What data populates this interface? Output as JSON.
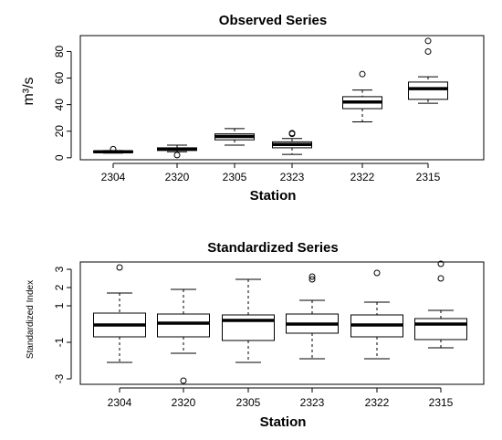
{
  "chart_data": [
    {
      "type": "box",
      "title": "Observed Series",
      "xlabel": "Station",
      "ylabel": "m³/s",
      "ylim": [
        -1.5,
        92
      ],
      "yticks": [
        0,
        20,
        40,
        60,
        80
      ],
      "ytick_labels": [
        "0",
        "20",
        "40",
        "60",
        "80"
      ],
      "categories": [
        "2304",
        "2320",
        "2305",
        "2323",
        "2322",
        "2315"
      ],
      "boxes": [
        {
          "whisker_low": 3.5,
          "q1": 4.0,
          "median": 4.5,
          "q3": 5.0,
          "whisker_high": 5.5,
          "outliers": [
            6.5
          ]
        },
        {
          "whisker_low": 4.5,
          "q1": 5.5,
          "median": 6.5,
          "q3": 7.5,
          "whisker_high": 9.5,
          "outliers": [
            2.0
          ]
        },
        {
          "whisker_low": 9.5,
          "q1": 13.5,
          "median": 16.0,
          "q3": 18.0,
          "whisker_high": 22.0,
          "outliers": []
        },
        {
          "whisker_low": 2.5,
          "q1": 7.5,
          "median": 10.0,
          "q3": 12.0,
          "whisker_high": 14.5,
          "outliers": [
            18.0,
            18.5
          ]
        },
        {
          "whisker_low": 27.0,
          "q1": 37.0,
          "median": 42.0,
          "q3": 46.0,
          "whisker_high": 51.0,
          "outliers": [
            63.0
          ]
        },
        {
          "whisker_low": 41.0,
          "q1": 44.0,
          "median": 52.0,
          "q3": 57.0,
          "whisker_high": 61.0,
          "outliers": [
            80.0,
            88.0
          ]
        }
      ]
    },
    {
      "type": "box",
      "title": "Standardized Series",
      "xlabel": "Station",
      "ylabel": "Standardized Index",
      "ylim": [
        -3.3,
        3.4
      ],
      "yticks": [
        -3,
        -1,
        1,
        2,
        3
      ],
      "ytick_labels": [
        "-3",
        "-1",
        "1",
        "2",
        "3"
      ],
      "categories": [
        "2304",
        "2320",
        "2305",
        "2323",
        "2322",
        "2315"
      ],
      "boxes": [
        {
          "whisker_low": -2.1,
          "q1": -0.7,
          "median": -0.05,
          "q3": 0.6,
          "whisker_high": 1.7,
          "outliers": [
            3.1
          ]
        },
        {
          "whisker_low": -1.6,
          "q1": -0.7,
          "median": 0.05,
          "q3": 0.55,
          "whisker_high": 1.9,
          "outliers": [
            -3.1
          ]
        },
        {
          "whisker_low": -2.1,
          "q1": -0.9,
          "median": 0.2,
          "q3": 0.5,
          "whisker_high": 2.45,
          "outliers": []
        },
        {
          "whisker_low": -1.9,
          "q1": -0.5,
          "median": 0.0,
          "q3": 0.55,
          "whisker_high": 1.3,
          "outliers": [
            2.45,
            2.6
          ]
        },
        {
          "whisker_low": -1.9,
          "q1": -0.7,
          "median": -0.05,
          "q3": 0.5,
          "whisker_high": 1.2,
          "outliers": [
            2.8
          ]
        },
        {
          "whisker_low": -1.3,
          "q1": -0.85,
          "median": 0.0,
          "q3": 0.3,
          "whisker_high": 0.75,
          "outliers": [
            2.5,
            3.3
          ]
        }
      ]
    }
  ]
}
